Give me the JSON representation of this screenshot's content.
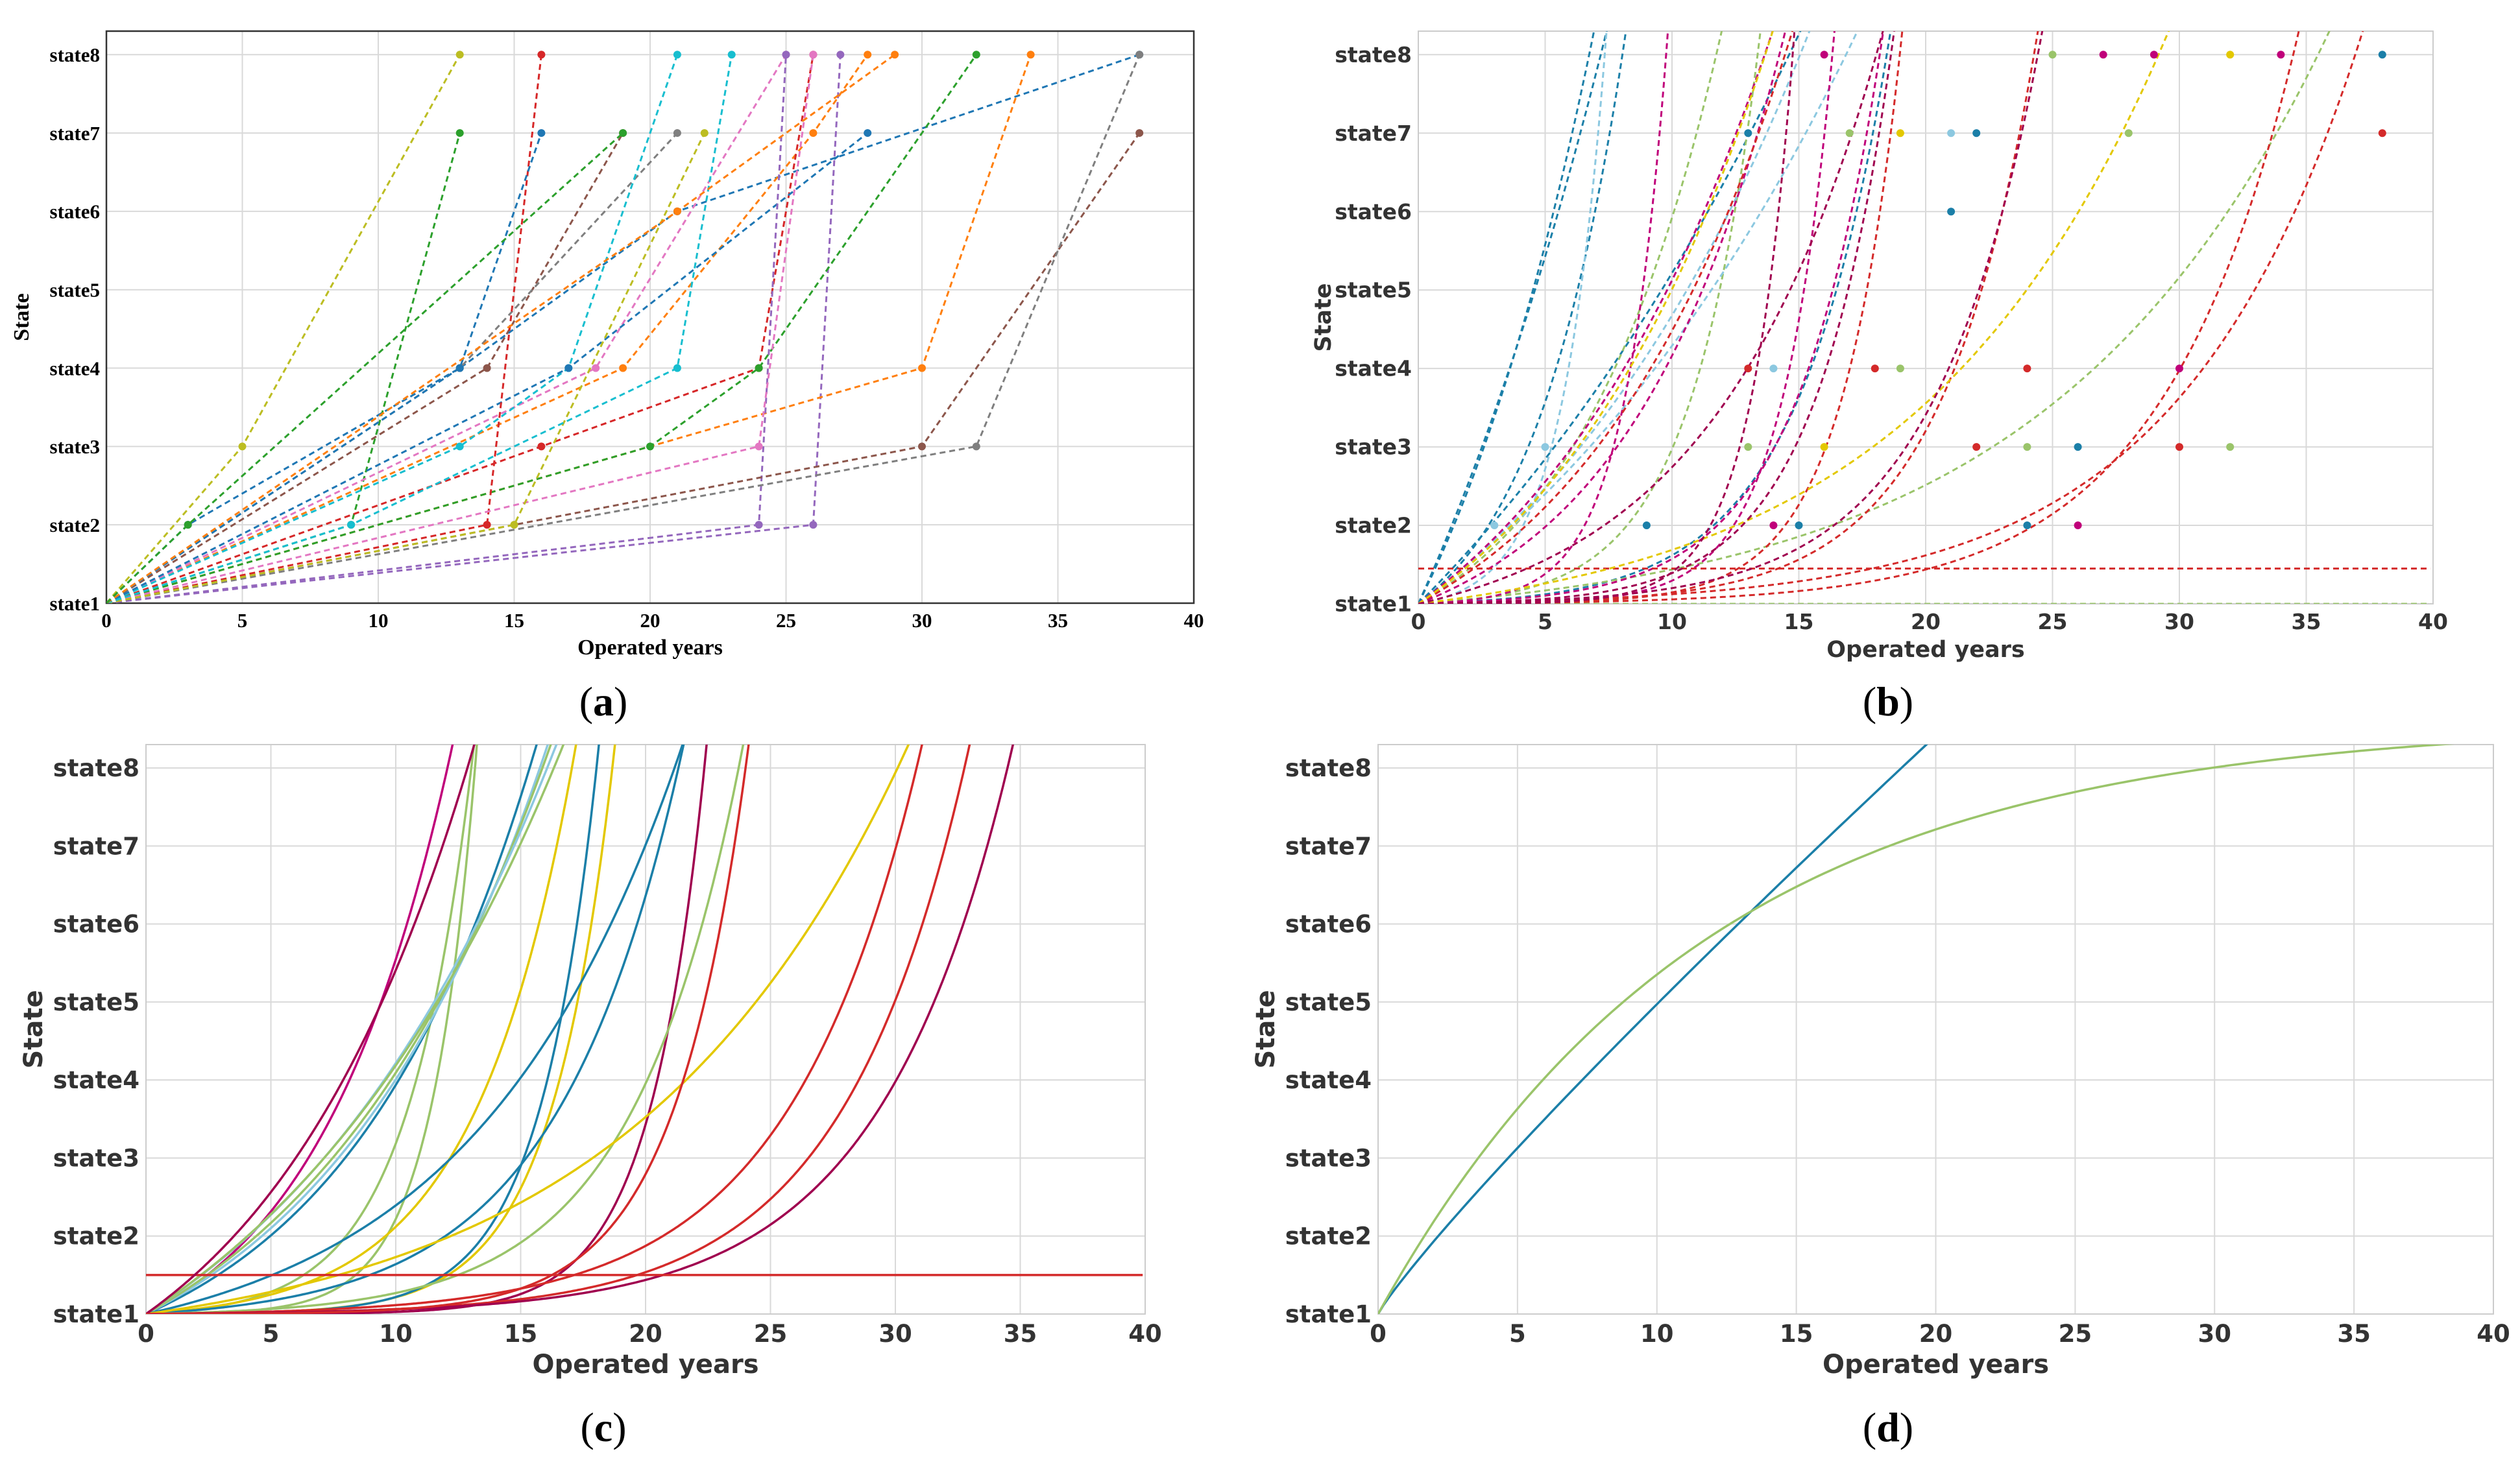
{
  "figure": {
    "type": "multi-panel line chart"
  },
  "colors": {
    "a": [
      "#1f77b4",
      "#ff7f0e",
      "#2ca02c",
      "#d62728",
      "#9467bd",
      "#8c564b",
      "#e377c2",
      "#7f7f7f",
      "#bcbd22",
      "#17becf"
    ],
    "b": [
      "#1b7fa8",
      "#9ac46a",
      "#8cc8e0",
      "#c0007a",
      "#d42a2a",
      "#e3c800",
      "#a0004f"
    ]
  },
  "chart_data": [
    {
      "panel": "a",
      "type": "line",
      "label_parts": [
        "(",
        "a",
        ")"
      ],
      "xlabel": "Operated years",
      "ylabel": "State",
      "xlim": [
        0,
        40
      ],
      "ylim": [
        1,
        8.3
      ],
      "xticks": [
        "0",
        "5",
        "10",
        "15",
        "20",
        "25",
        "30",
        "35",
        "40"
      ],
      "yticks": [
        "state1",
        "state2",
        "state3",
        "state4",
        "state5",
        "state6",
        "state7",
        "state8"
      ],
      "style": "dashed piecewise-linear with markers",
      "series": [
        {
          "points": [
            [
              0,
              1
            ],
            [
              3,
              2
            ],
            [
              13,
              4
            ],
            [
              21,
              6
            ],
            [
              38,
              8
            ]
          ]
        },
        {
          "points": [
            [
              0,
              1
            ],
            [
              19,
              4
            ],
            [
              26,
              7
            ],
            [
              28,
              8
            ]
          ]
        },
        {
          "points": [
            [
              0,
              1
            ],
            [
              9,
              2
            ],
            [
              13,
              7
            ]
          ]
        },
        {
          "points": [
            [
              0,
              1
            ],
            [
              16,
              3
            ],
            [
              24,
              4
            ],
            [
              26,
              8
            ]
          ]
        },
        {
          "points": [
            [
              0,
              1
            ],
            [
              26,
              2
            ],
            [
              27,
              8
            ]
          ]
        },
        {
          "points": [
            [
              0,
              1
            ],
            [
              14,
              4
            ],
            [
              19,
              7
            ]
          ]
        },
        {
          "points": [
            [
              0,
              1
            ],
            [
              18,
              4
            ],
            [
              25,
              8
            ]
          ]
        },
        {
          "points": [
            [
              0,
              1
            ],
            [
              13,
              4
            ],
            [
              21,
              7
            ]
          ]
        },
        {
          "points": [
            [
              0,
              1
            ],
            [
              5,
              3
            ],
            [
              13,
              8
            ]
          ]
        },
        {
          "points": [
            [
              0,
              1
            ],
            [
              13,
              3
            ],
            [
              17,
              4
            ],
            [
              21,
              8
            ]
          ]
        },
        {
          "points": [
            [
              0,
              1
            ],
            [
              17,
              4
            ],
            [
              28,
              7
            ]
          ]
        },
        {
          "points": [
            [
              0,
              1
            ],
            [
              30,
              4
            ],
            [
              34,
              8
            ]
          ]
        },
        {
          "points": [
            [
              0,
              1
            ],
            [
              20,
              3
            ],
            [
              24,
              4
            ],
            [
              32,
              8
            ]
          ]
        },
        {
          "points": [
            [
              0,
              1
            ],
            [
              14,
              2
            ],
            [
              16,
              8
            ]
          ]
        },
        {
          "points": [
            [
              0,
              1
            ],
            [
              24,
              2
            ],
            [
              25,
              8
            ]
          ]
        },
        {
          "points": [
            [
              0,
              1
            ],
            [
              30,
              3
            ],
            [
              38,
              7
            ]
          ]
        },
        {
          "points": [
            [
              0,
              1
            ],
            [
              24,
              3
            ],
            [
              26,
              8
            ]
          ]
        },
        {
          "points": [
            [
              0,
              1
            ],
            [
              32,
              3
            ],
            [
              38,
              8
            ]
          ]
        },
        {
          "points": [
            [
              0,
              1
            ],
            [
              15,
              2
            ],
            [
              22,
              7
            ]
          ]
        },
        {
          "points": [
            [
              0,
              1
            ],
            [
              9,
              2
            ],
            [
              21,
              4
            ],
            [
              23,
              8
            ]
          ]
        },
        {
          "points": [
            [
              0,
              1
            ],
            [
              13,
              4
            ],
            [
              16,
              7
            ]
          ]
        },
        {
          "points": [
            [
              0,
              1
            ],
            [
              21,
              6
            ],
            [
              29,
              8
            ]
          ]
        },
        {
          "points": [
            [
              0,
              1
            ],
            [
              3,
              2
            ],
            [
              19,
              7
            ]
          ]
        }
      ]
    },
    {
      "panel": "b",
      "type": "line",
      "label_parts": [
        "(",
        "b",
        ")"
      ],
      "xlabel": "Operated years",
      "ylabel": "State",
      "xlim": [
        0,
        40
      ],
      "ylim": [
        1,
        8.3
      ],
      "xticks": [
        "0",
        "5",
        "10",
        "15",
        "20",
        "25",
        "30",
        "35",
        "40"
      ],
      "yticks": [
        "state1",
        "state2",
        "state3",
        "state4",
        "state5",
        "state6",
        "state7",
        "state8"
      ],
      "style": "dashed fitted exponential curves with markers",
      "series": [
        {
          "color_index": 0,
          "a": 6.5,
          "b": 0.05
        },
        {
          "color_index": 0,
          "a": 9.0,
          "b": 0.08
        },
        {
          "color_index": 0,
          "a": 5.0,
          "b": 0.13
        },
        {
          "color_index": 0,
          "a": 0.9,
          "b": 0.27
        },
        {
          "color_index": 0,
          "a": 0.04,
          "b": 0.28
        },
        {
          "color_index": 1,
          "a": 4.5,
          "b": 0.0
        },
        {
          "color_index": 1,
          "a": 1.1,
          "b": 0.17
        },
        {
          "color_index": 1,
          "a": 0.05,
          "b": 0.37
        },
        {
          "color_index": 1,
          "a": 0.3,
          "b": 0.09
        },
        {
          "color_index": 2,
          "a": 3.0,
          "b": 0.08
        },
        {
          "color_index": 2,
          "a": 4.0,
          "b": 0.06
        },
        {
          "color_index": 2,
          "a": 0.1,
          "b": 0.58
        },
        {
          "color_index": 3,
          "a": 2.4,
          "b": 0.1
        },
        {
          "color_index": 3,
          "a": 0.8,
          "b": 0.16
        },
        {
          "color_index": 3,
          "a": 0.02,
          "b": 0.6
        },
        {
          "color_index": 3,
          "a": 0.03,
          "b": 0.3
        },
        {
          "color_index": 3,
          "a": 0.002,
          "b": 0.5
        },
        {
          "color_index": 4,
          "a": 1.5,
          "b": 0.12
        },
        {
          "color_index": 4,
          "a": 0.04,
          "b": 0.14
        },
        {
          "color_index": 4,
          "a": 0.01,
          "b": 0.19
        },
        {
          "color_index": 4,
          "a": 0.01,
          "b": 0.27
        },
        {
          "color_index": 4,
          "a": 0.002,
          "b": 0.43
        },
        {
          "color_index": 4,
          "a": 0.0,
          "b": 0.0,
          "offset": 1.45
        },
        {
          "color_index": 5,
          "a": 2.0,
          "b": 0.11
        },
        {
          "color_index": 5,
          "a": 0.4,
          "b": 0.1
        },
        {
          "color_index": 6,
          "a": 0.5,
          "b": 0.15
        },
        {
          "color_index": 6,
          "a": 0.015,
          "b": 0.33
        },
        {
          "color_index": 6,
          "a": 0.02,
          "b": 0.24
        },
        {
          "color_index": 6,
          "a": 0.001,
          "b": 0.6
        }
      ],
      "markers": [
        {
          "x": 3,
          "y": 2,
          "c": 2
        },
        {
          "x": 5,
          "y": 3,
          "c": 2
        },
        {
          "x": 13,
          "y": 4,
          "c": 4
        },
        {
          "x": 13,
          "y": 7,
          "c": 0
        },
        {
          "x": 16,
          "y": 8,
          "c": 3
        },
        {
          "x": 9,
          "y": 2,
          "c": 0
        },
        {
          "x": 14,
          "y": 2,
          "c": 3
        },
        {
          "x": 15,
          "y": 2,
          "c": 0
        },
        {
          "x": 14,
          "y": 4,
          "c": 2
        },
        {
          "x": 16,
          "y": 3,
          "c": 5
        },
        {
          "x": 13,
          "y": 3,
          "c": 1
        },
        {
          "x": 17,
          "y": 7,
          "c": 1
        },
        {
          "x": 18,
          "y": 4,
          "c": 4
        },
        {
          "x": 19,
          "y": 4,
          "c": 1
        },
        {
          "x": 19,
          "y": 7,
          "c": 5
        },
        {
          "x": 21,
          "y": 6,
          "c": 0
        },
        {
          "x": 21,
          "y": 7,
          "c": 2
        },
        {
          "x": 22,
          "y": 3,
          "c": 4
        },
        {
          "x": 22,
          "y": 7,
          "c": 0
        },
        {
          "x": 24,
          "y": 2,
          "c": 0
        },
        {
          "x": 24,
          "y": 3,
          "c": 1
        },
        {
          "x": 24,
          "y": 4,
          "c": 4
        },
        {
          "x": 25,
          "y": 8,
          "c": 1
        },
        {
          "x": 26,
          "y": 2,
          "c": 3
        },
        {
          "x": 26,
          "y": 3,
          "c": 0
        },
        {
          "x": 27,
          "y": 8,
          "c": 3
        },
        {
          "x": 28,
          "y": 7,
          "c": 1
        },
        {
          "x": 29,
          "y": 8,
          "c": 3
        },
        {
          "x": 30,
          "y": 3,
          "c": 4
        },
        {
          "x": 30,
          "y": 4,
          "c": 3
        },
        {
          "x": 32,
          "y": 3,
          "c": 1
        },
        {
          "x": 32,
          "y": 8,
          "c": 5
        },
        {
          "x": 34,
          "y": 8,
          "c": 3
        },
        {
          "x": 38,
          "y": 7,
          "c": 4
        },
        {
          "x": 38,
          "y": 8,
          "c": 0
        }
      ]
    },
    {
      "panel": "c",
      "type": "line",
      "label_parts": [
        "(",
        "c",
        ")"
      ],
      "xlabel": "Operated years",
      "ylabel": "State",
      "xlim": [
        0,
        40
      ],
      "ylim": [
        1,
        8.3
      ],
      "xticks": [
        "0",
        "5",
        "10",
        "15",
        "20",
        "25",
        "30",
        "35",
        "40"
      ],
      "yticks": [
        "state1",
        "state2",
        "state3",
        "state4",
        "state5",
        "state6",
        "state7",
        "state8"
      ],
      "style": "solid fitted exponential curves",
      "series": [
        {
          "color_index": 3,
          "a": 0.9,
          "b": 0.18
        },
        {
          "color_index": 1,
          "a": 0.05,
          "b": 0.38
        },
        {
          "color_index": 1,
          "a": 0.005,
          "b": 0.55
        },
        {
          "color_index": 0,
          "a": 1.1,
          "b": 0.13
        },
        {
          "color_index": 2,
          "a": 1.5,
          "b": 0.11
        },
        {
          "color_index": 1,
          "a": 1.8,
          "b": 0.1
        },
        {
          "color_index": 2,
          "a": 2.4,
          "b": 0.085
        },
        {
          "color_index": 1,
          "a": 2.6,
          "b": 0.08
        },
        {
          "color_index": 5,
          "a": 0.1,
          "b": 0.25
        },
        {
          "color_index": 5,
          "a": 0.004,
          "b": 0.4
        },
        {
          "color_index": 0,
          "a": 0.6,
          "b": 0.12
        },
        {
          "color_index": 0,
          "a": 0.1,
          "b": 0.2
        },
        {
          "color_index": 0,
          "a": 0.003,
          "b": 0.43
        },
        {
          "color_index": 6,
          "a": 0.0003,
          "b": 0.45
        },
        {
          "color_index": 1,
          "a": 0.03,
          "b": 0.23
        },
        {
          "color_index": 4,
          "a": 0.02,
          "b": 0.19
        },
        {
          "color_index": 5,
          "a": 0.5,
          "b": 0.09
        },
        {
          "color_index": 4,
          "a": 0.01,
          "b": 0.2
        },
        {
          "color_index": 6,
          "a": 0.01,
          "b": 0.19
        },
        {
          "color_index": 4,
          "a": 0.0,
          "b": 0.0,
          "offset": 1.5
        },
        {
          "color_index": 6,
          "a": 1.9,
          "b": 0.12
        },
        {
          "color_index": 4,
          "a": 0.002,
          "b": 0.34
        }
      ]
    },
    {
      "panel": "d",
      "type": "line",
      "label_parts": [
        "(",
        "d",
        ")"
      ],
      "xlabel": "Operated years",
      "ylabel": "State",
      "xlim": [
        0,
        40
      ],
      "ylim": [
        1,
        8.3
      ],
      "xticks": [
        "0",
        "5",
        "10",
        "15",
        "20",
        "25",
        "30",
        "35",
        "40"
      ],
      "yticks": [
        "state1",
        "state2",
        "state3",
        "state4",
        "state5",
        "state6",
        "state7",
        "state8"
      ],
      "style": "solid fitted curves",
      "series": [
        {
          "name": "blue",
          "color_index": 0,
          "kind": "power",
          "a": 0.5,
          "p": 0.9
        },
        {
          "name": "green",
          "color_index": 1,
          "kind": "saturating",
          "a": 7.6,
          "k": 0.085
        }
      ]
    }
  ]
}
